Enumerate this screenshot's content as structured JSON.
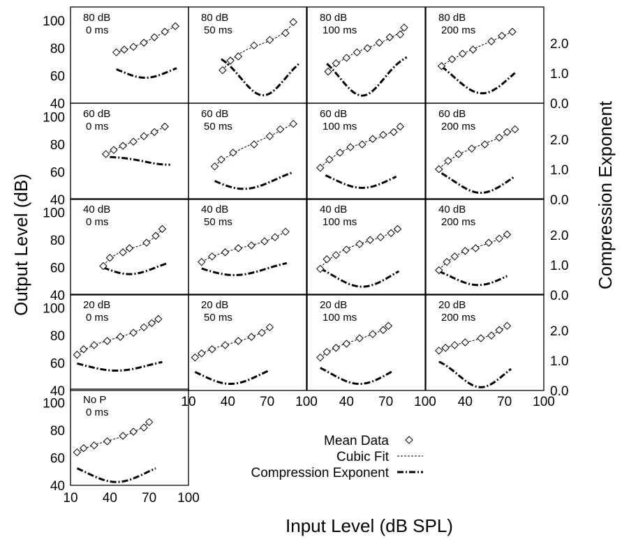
{
  "chart_data": {
    "type": "scatter",
    "xlabel": "Input Level (dB SPL)",
    "ylabel": "Output Level (dB)",
    "y2label": "Compression Exponent",
    "xlim": [
      10,
      100
    ],
    "ylim": [
      40,
      110
    ],
    "y2lim": [
      0,
      3.2
    ],
    "x_ticks": [
      "10",
      "40",
      "70",
      "100"
    ],
    "y_ticks": [
      "40",
      "60",
      "80",
      "100"
    ],
    "y2_ticks": [
      "0.0",
      "1.0",
      "2.0"
    ],
    "legend": {
      "position": "bottom-right",
      "entries": [
        "Mean Data",
        "Cubic Fit",
        "Compression Exponent"
      ]
    },
    "panels": [
      {
        "row": 0,
        "col": 0,
        "label1": "80 dB",
        "label2": "0 ms",
        "data_x": [
          45,
          51,
          58,
          66,
          74,
          82,
          90
        ],
        "data_y": [
          77,
          79,
          81,
          84,
          88,
          92,
          96
        ],
        "fit": [
          45,
          91
        ],
        "exp_x": [
          45,
          91
        ],
        "exp_coef": [
          0.77,
          1.4,
          67,
          700
        ]
      },
      {
        "row": 0,
        "col": 1,
        "label1": "80 dB",
        "label2": "50 ms",
        "data_x": [
          36,
          42,
          48,
          60,
          72,
          84,
          90
        ],
        "data_y": [
          64,
          71,
          74,
          82,
          86,
          91,
          99
        ],
        "fit": [
          36,
          91
        ],
        "exp_x": [
          35,
          95
        ],
        "exp_coef": [
          0.24,
          1.85,
          67,
          580
        ]
      },
      {
        "row": 0,
        "col": 2,
        "label1": "80 dB",
        "label2": "100 ms",
        "data_x": [
          26,
          32,
          40,
          48,
          56,
          65,
          73,
          81,
          84
        ],
        "data_y": [
          63,
          69,
          73,
          77,
          80,
          84,
          88,
          90,
          95
        ],
        "fit": [
          26,
          85
        ],
        "exp_x": [
          25,
          86
        ],
        "exp_coef": [
          0.23,
          1.85,
          52,
          560
        ]
      },
      {
        "row": 0,
        "col": 3,
        "label1": "80 dB",
        "label2": "200 ms",
        "data_x": [
          22,
          30,
          38,
          46,
          60,
          68,
          76
        ],
        "data_y": [
          67,
          72,
          76,
          79,
          85,
          89,
          92
        ],
        "fit": [
          22,
          77
        ],
        "exp_x": [
          22,
          78
        ],
        "exp_coef": [
          0.3,
          1.8,
          53,
          900
        ]
      },
      {
        "row": 1,
        "col": 0,
        "label1": "60 dB",
        "label2": "0 ms",
        "data_x": [
          37,
          43,
          50,
          58,
          66,
          74,
          82
        ],
        "data_y": [
          73,
          76,
          79,
          82,
          86,
          89,
          93
        ],
        "fit": [
          37,
          83
        ],
        "exp_x": [
          40,
          86
        ],
        "exp_coef": [
          1.05,
          1.35,
          85,
          700
        ]
      },
      {
        "row": 1,
        "col": 1,
        "label1": "60 dB",
        "label2": "50 ms",
        "data_x": [
          30,
          35,
          44,
          60,
          72,
          80,
          90
        ],
        "data_y": [
          64,
          69,
          74,
          80,
          86,
          91,
          95
        ],
        "fit": [
          30,
          91
        ],
        "exp_x": [
          30,
          90
        ],
        "exp_coef": [
          0.32,
          1.2,
          52,
          1200
        ]
      },
      {
        "row": 1,
        "col": 2,
        "label1": "60 dB",
        "label2": "100 ms",
        "data_x": [
          20,
          27,
          35,
          43,
          52,
          60,
          68,
          76,
          81
        ],
        "data_y": [
          63,
          69,
          74,
          78,
          80,
          84,
          87,
          89,
          93
        ],
        "fit": [
          20,
          82
        ],
        "exp_x": [
          24,
          78
        ],
        "exp_coef": [
          0.35,
          1.2,
          52,
          1000
        ]
      },
      {
        "row": 1,
        "col": 3,
        "label1": "60 dB",
        "label2": "200 ms",
        "data_x": [
          20,
          27,
          35,
          45,
          55,
          66,
          72,
          78
        ],
        "data_y": [
          62,
          68,
          73,
          77,
          80,
          85,
          89,
          91
        ],
        "fit": [
          20,
          79
        ],
        "exp_x": [
          22,
          78
        ],
        "exp_coef": [
          0.2,
          1.3,
          52,
          850
        ]
      },
      {
        "row": 2,
        "col": 0,
        "label1": "40 dB",
        "label2": "0 ms",
        "data_x": [
          35,
          40,
          50,
          55,
          68,
          75,
          80
        ],
        "data_y": [
          61,
          67,
          71,
          74,
          78,
          83,
          88
        ],
        "fit": [
          35,
          81
        ],
        "exp_x": [
          35,
          84
        ],
        "exp_coef": [
          0.63,
          1.25,
          55,
          800
        ]
      },
      {
        "row": 2,
        "col": 1,
        "label1": "40 dB",
        "label2": "50 ms",
        "data_x": [
          20,
          28,
          38,
          48,
          58,
          68,
          76,
          84
        ],
        "data_y": [
          64,
          68,
          71,
          74,
          76,
          79,
          82,
          86
        ],
        "fit": [
          20,
          85
        ],
        "exp_x": [
          20,
          85
        ],
        "exp_coef": [
          0.6,
          1.2,
          45,
          1200
        ]
      },
      {
        "row": 2,
        "col": 2,
        "label1": "40 dB",
        "label2": "100 ms",
        "data_x": [
          20,
          25,
          32,
          40,
          50,
          58,
          66,
          74,
          79
        ],
        "data_y": [
          59,
          66,
          69,
          73,
          77,
          80,
          82,
          85,
          88
        ],
        "fit": [
          20,
          80
        ],
        "exp_x": [
          20,
          80
        ],
        "exp_coef": [
          0.25,
          1.3,
          52,
          1000
        ]
      },
      {
        "row": 2,
        "col": 3,
        "label1": "40 dB",
        "label2": "200 ms",
        "data_x": [
          20,
          26,
          32,
          40,
          48,
          58,
          66,
          72
        ],
        "data_y": [
          58,
          64,
          68,
          72,
          74,
          78,
          81,
          84
        ],
        "fit": [
          20,
          73
        ],
        "exp_x": [
          20,
          72
        ],
        "exp_coef": [
          0.3,
          1.1,
          50,
          900
        ]
      },
      {
        "row": 3,
        "col": 0,
        "label1": "20 dB",
        "label2": "0 ms",
        "data_x": [
          15,
          20,
          28,
          38,
          48,
          58,
          66,
          72,
          77
        ],
        "data_y": [
          66,
          70,
          73,
          76,
          79,
          82,
          86,
          89,
          92
        ],
        "fit": [
          15,
          78
        ],
        "exp_x": [
          15,
          80
        ],
        "exp_coef": [
          0.6,
          1.1,
          45,
          1200
        ]
      },
      {
        "row": 3,
        "col": 1,
        "label1": "20 dB",
        "label2": "50 ms",
        "data_x": [
          15,
          20,
          28,
          38,
          48,
          58,
          66,
          72
        ],
        "data_y": [
          64,
          67,
          70,
          73,
          76,
          79,
          82,
          86
        ],
        "fit": [
          15,
          73
        ],
        "exp_x": [
          15,
          72
        ],
        "exp_coef": [
          0.2,
          1.05,
          42,
          1000
        ]
      },
      {
        "row": 3,
        "col": 2,
        "label1": "20 dB",
        "label2": "100 ms",
        "data_x": [
          20,
          25,
          32,
          40,
          50,
          60,
          68,
          72
        ],
        "data_y": [
          64,
          68,
          71,
          74,
          78,
          81,
          84,
          87
        ],
        "fit": [
          20,
          73
        ],
        "exp_x": [
          20,
          75
        ],
        "exp_coef": [
          0.2,
          1.2,
          50,
          1000
        ]
      },
      {
        "row": 3,
        "col": 3,
        "label1": "20 dB",
        "label2": "200 ms",
        "data_x": [
          20,
          25,
          32,
          40,
          52,
          60,
          66,
          72
        ],
        "data_y": [
          69,
          71,
          73,
          75,
          78,
          80,
          84,
          87
        ],
        "fit": [
          20,
          73
        ],
        "exp_x": [
          20,
          75
        ],
        "exp_coef": [
          0.1,
          1.25,
          52,
          600
        ]
      },
      {
        "row": 4,
        "col": 0,
        "label1": "No P",
        "label2": "0 ms",
        "data_x": [
          15,
          20,
          28,
          38,
          50,
          58,
          66,
          70
        ],
        "data_y": [
          64,
          67,
          69,
          72,
          76,
          79,
          82,
          86
        ],
        "fit": [
          15,
          71
        ],
        "exp_x": [
          15,
          75
        ],
        "exp_coef": [
          0.1,
          0.95,
          45,
          1000
        ]
      }
    ]
  }
}
